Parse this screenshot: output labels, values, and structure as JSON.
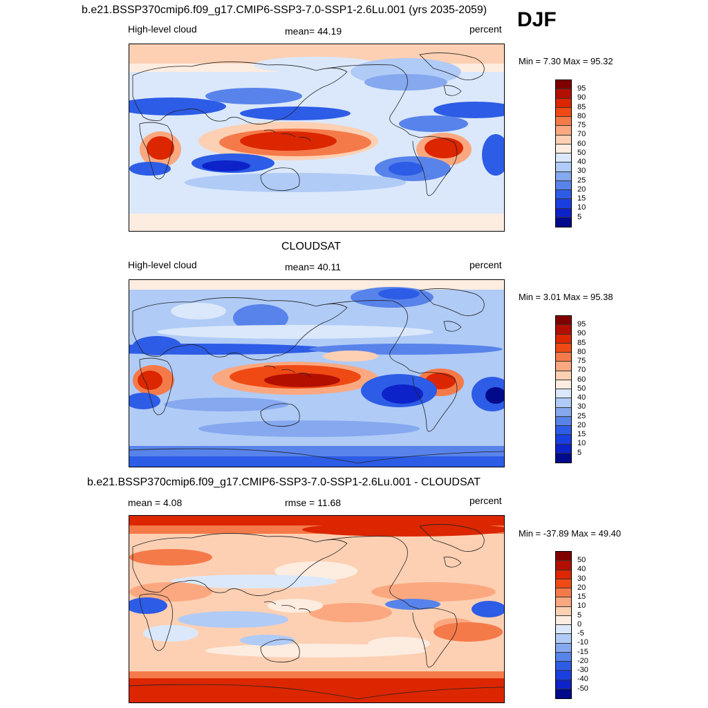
{
  "season": "DJF",
  "palette_abs": [
    "#800000",
    "#b30f00",
    "#db2600",
    "#f04a14",
    "#f57a4a",
    "#fba880",
    "#fdd0b3",
    "#fdece0",
    "#dbe8fb",
    "#b0cbf6",
    "#85a8ef",
    "#5883ea",
    "#2d5ce6",
    "#1a3fe1",
    "#0d22c8",
    "#000a8a"
  ],
  "palette_diff": [
    "#800000",
    "#b30f00",
    "#db2600",
    "#f04a14",
    "#f57a4a",
    "#fba880",
    "#fdd0b3",
    "#fdece0",
    "#dbe8fb",
    "#b0cbf6",
    "#85a8ef",
    "#5883ea",
    "#2d5ce6",
    "#1a3fe1",
    "#0d22c8",
    "#000a8a"
  ],
  "panels": [
    {
      "title": "b.e21.BSSP370cmip6.f09_g17.CMIP6-SSP3-7.0-SSP1-2.6Lu.001 (yrs 2035-2059)",
      "left_label": "High-level cloud",
      "center_label": "mean=  44.19",
      "right_label": "percent",
      "minmax": "Min =   7.30 Max =  95.32",
      "ticks": [
        "95",
        "90",
        "85",
        "80",
        "75",
        "70",
        "60",
        "50",
        "40",
        "30",
        "25",
        "20",
        "15",
        "10",
        "5"
      ]
    },
    {
      "title": "CLOUDSAT",
      "left_label": "High-level cloud",
      "center_label": "mean=  40.11",
      "right_label": "percent",
      "minmax": "Min =   3.01 Max =  95.38",
      "ticks": [
        "95",
        "90",
        "85",
        "80",
        "75",
        "70",
        "60",
        "50",
        "40",
        "30",
        "25",
        "20",
        "15",
        "10",
        "5"
      ]
    },
    {
      "title": "b.e21.BSSP370cmip6.f09_g17.CMIP6-SSP3-7.0-SSP1-2.6Lu.001 - CLOUDSAT",
      "left_label": "mean =   4.08",
      "center_label": "rmse =  11.68",
      "right_label": "percent",
      "minmax": "Min = -37.89 Max =  49.40",
      "ticks": [
        "50",
        "40",
        "30",
        "20",
        "15",
        "10",
        "5",
        "0",
        "-5",
        "-10",
        "-15",
        "-20",
        "-30",
        "-40",
        "-50"
      ]
    }
  ]
}
